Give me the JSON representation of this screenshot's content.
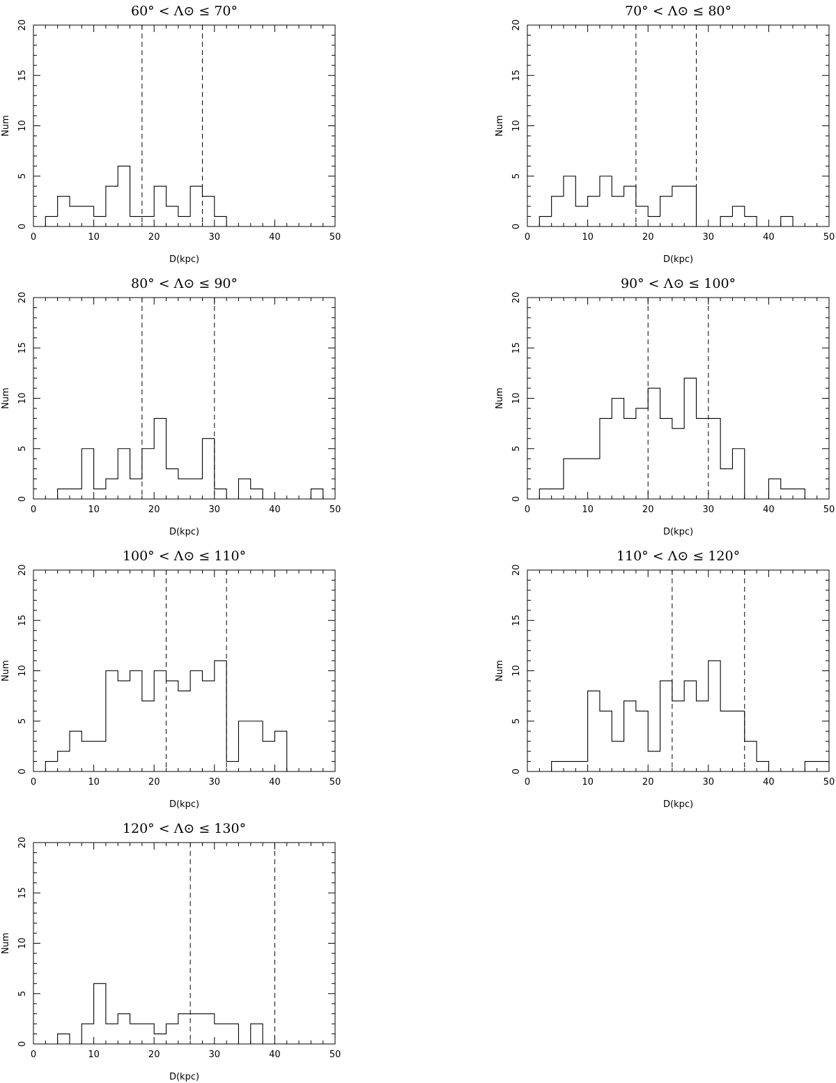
{
  "chart_data": [
    {
      "type": "bar",
      "title": "60° < Λ⊙ ≤ 70°",
      "xlabel": "D(kpc)",
      "ylabel": "Num",
      "xlim": [
        0,
        50
      ],
      "ylim": [
        0,
        20
      ],
      "xticks": [
        "0",
        "10",
        "20",
        "30",
        "40",
        "50"
      ],
      "yticks": [
        "0",
        "5",
        "10",
        "15",
        "20"
      ],
      "bin_width": 2,
      "bin_edges_start": 2,
      "counts": [
        1,
        3,
        2,
        2,
        1,
        4,
        6,
        1,
        1,
        4,
        2,
        1,
        4,
        3,
        1
      ],
      "vlines": [
        18,
        28
      ],
      "grid": false
    },
    {
      "type": "bar",
      "title": "70° < Λ⊙ ≤ 80°",
      "xlabel": "D(kpc)",
      "ylabel": "Num",
      "xlim": [
        0,
        50
      ],
      "ylim": [
        0,
        20
      ],
      "xticks": [
        "0",
        "10",
        "20",
        "30",
        "40",
        "50"
      ],
      "yticks": [
        "0",
        "5",
        "10",
        "15",
        "20"
      ],
      "bin_width": 2,
      "bin_edges_start": 2,
      "counts": [
        1,
        3,
        5,
        2,
        3,
        5,
        3,
        4,
        2,
        1,
        3,
        4,
        4,
        0,
        0,
        1,
        2,
        1,
        0,
        0,
        1
      ],
      "vlines": [
        18,
        28
      ],
      "grid": false
    },
    {
      "type": "bar",
      "title": "80° < Λ⊙ ≤ 90°",
      "xlabel": "D(kpc)",
      "ylabel": "Num",
      "xlim": [
        0,
        50
      ],
      "ylim": [
        0,
        20
      ],
      "xticks": [
        "0",
        "10",
        "20",
        "30",
        "40",
        "50"
      ],
      "yticks": [
        "0",
        "5",
        "10",
        "15",
        "20"
      ],
      "bin_width": 2,
      "bin_edges_start": 4,
      "counts": [
        1,
        1,
        5,
        1,
        2,
        5,
        2,
        5,
        8,
        3,
        2,
        2,
        6,
        1,
        0,
        2,
        1,
        0,
        0,
        0,
        0,
        1
      ],
      "vlines": [
        18,
        30
      ],
      "grid": false
    },
    {
      "type": "bar",
      "title": "90° < Λ⊙ ≤ 100°",
      "xlabel": "D(kpc)",
      "ylabel": "Num",
      "xlim": [
        0,
        50
      ],
      "ylim": [
        0,
        20
      ],
      "xticks": [
        "0",
        "10",
        "20",
        "30",
        "40",
        "50"
      ],
      "yticks": [
        "0",
        "5",
        "10",
        "15",
        "20"
      ],
      "bin_width": 2,
      "bin_edges_start": 2,
      "counts": [
        1,
        1,
        4,
        4,
        4,
        8,
        10,
        8,
        9,
        11,
        8,
        7,
        12,
        8,
        8,
        3,
        5,
        0,
        0,
        2,
        1,
        1
      ],
      "vlines": [
        20,
        30
      ],
      "grid": false
    },
    {
      "type": "bar",
      "title": "100° < Λ⊙ ≤ 110°",
      "xlabel": "D(kpc)",
      "ylabel": "Num",
      "xlim": [
        0,
        50
      ],
      "ylim": [
        0,
        20
      ],
      "xticks": [
        "0",
        "10",
        "20",
        "30",
        "40",
        "50"
      ],
      "yticks": [
        "0",
        "5",
        "10",
        "15",
        "20"
      ],
      "bin_width": 2,
      "bin_edges_start": 2,
      "counts": [
        1,
        2,
        4,
        3,
        3,
        10,
        9,
        10,
        7,
        10,
        9,
        8,
        10,
        9,
        11,
        1,
        5,
        5,
        3,
        4
      ],
      "vlines": [
        22,
        32
      ],
      "grid": false
    },
    {
      "type": "bar",
      "title": "110° < Λ⊙ ≤ 120°",
      "xlabel": "D(kpc)",
      "ylabel": "Num",
      "xlim": [
        0,
        50
      ],
      "ylim": [
        0,
        20
      ],
      "xticks": [
        "0",
        "10",
        "20",
        "30",
        "40",
        "50"
      ],
      "yticks": [
        "0",
        "5",
        "10",
        "15",
        "20"
      ],
      "bin_width": 2,
      "bin_edges_start": 4,
      "counts": [
        1,
        1,
        1,
        8,
        6,
        3,
        7,
        6,
        2,
        9,
        7,
        9,
        7,
        11,
        6,
        6,
        3,
        1,
        0,
        0,
        0,
        1,
        1
      ],
      "vlines": [
        24,
        36
      ],
      "grid": false
    },
    {
      "type": "bar",
      "title": "120° < Λ⊙ ≤ 130°",
      "xlabel": "D(kpc)",
      "ylabel": "Num",
      "xlim": [
        0,
        50
      ],
      "ylim": [
        0,
        20
      ],
      "xticks": [
        "0",
        "10",
        "20",
        "30",
        "40",
        "50"
      ],
      "yticks": [
        "0",
        "5",
        "10",
        "15",
        "20"
      ],
      "bin_width": 2,
      "bin_edges_start": 4,
      "counts": [
        1,
        0,
        2,
        6,
        2,
        3,
        2,
        2,
        1,
        2,
        3,
        3,
        3,
        2,
        2,
        0,
        2
      ],
      "vlines": [
        26,
        40
      ],
      "grid": false
    }
  ]
}
